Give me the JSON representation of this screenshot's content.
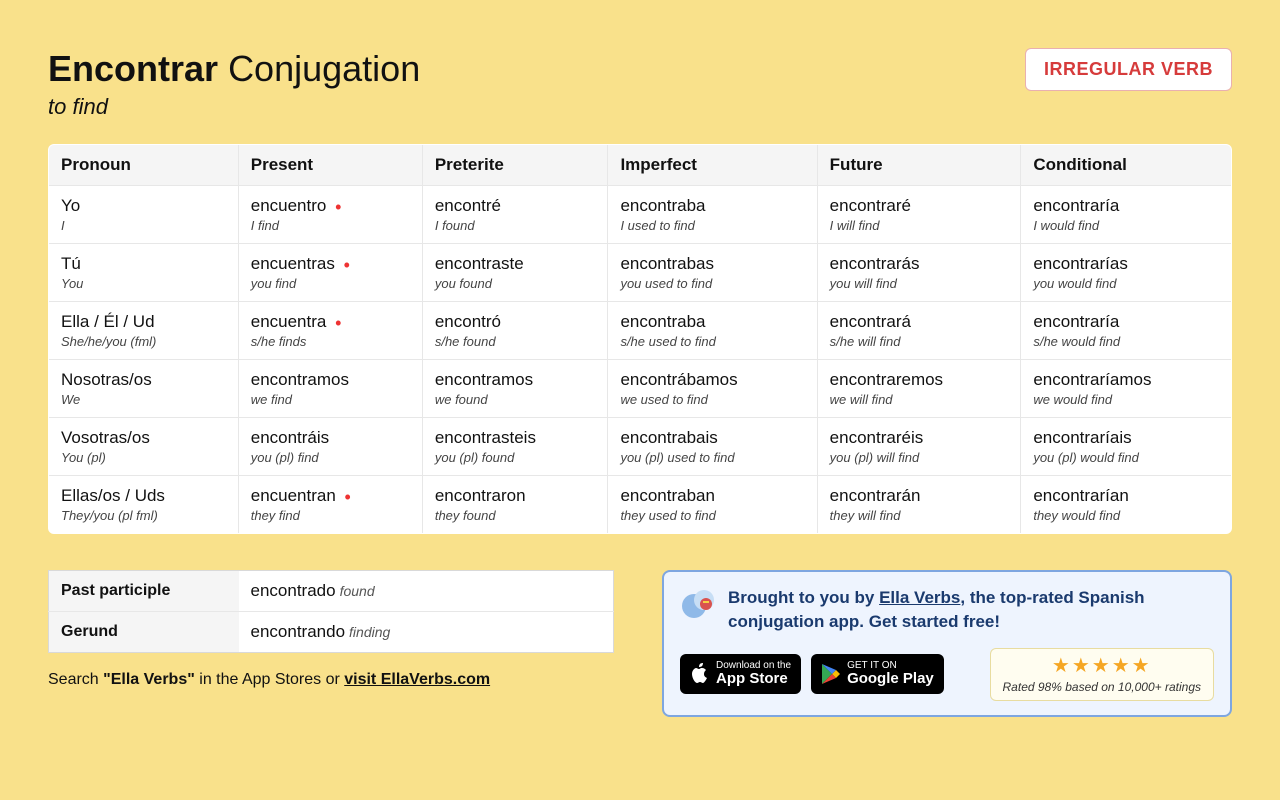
{
  "header": {
    "verb": "Encontrar",
    "title_suffix": "Conjugation",
    "meaning": "to find",
    "badge": "IRREGULAR VERB"
  },
  "columns": [
    "Pronoun",
    "Present",
    "Preterite",
    "Imperfect",
    "Future",
    "Conditional"
  ],
  "rows": [
    {
      "pronoun": "Yo",
      "pronoun_en": "I",
      "present": "encuentro",
      "present_en": "I find",
      "present_irr": true,
      "preterite": "encontré",
      "preterite_en": "I found",
      "imperfect": "encontraba",
      "imperfect_en": "I used to find",
      "future": "encontraré",
      "future_en": "I will find",
      "conditional": "encontraría",
      "conditional_en": "I would find"
    },
    {
      "pronoun": "Tú",
      "pronoun_en": "You",
      "present": "encuentras",
      "present_en": "you find",
      "present_irr": true,
      "preterite": "encontraste",
      "preterite_en": "you found",
      "imperfect": "encontrabas",
      "imperfect_en": "you used to find",
      "future": "encontrarás",
      "future_en": "you will find",
      "conditional": "encontrarías",
      "conditional_en": "you would find"
    },
    {
      "pronoun": "Ella / Él / Ud",
      "pronoun_en": "She/he/you (fml)",
      "present": "encuentra",
      "present_en": "s/he finds",
      "present_irr": true,
      "preterite": "encontró",
      "preterite_en": "s/he found",
      "imperfect": "encontraba",
      "imperfect_en": "s/he used to find",
      "future": "encontrará",
      "future_en": "s/he will find",
      "conditional": "encontraría",
      "conditional_en": "s/he would find"
    },
    {
      "pronoun": "Nosotras/os",
      "pronoun_en": "We",
      "present": "encontramos",
      "present_en": "we find",
      "present_irr": false,
      "preterite": "encontramos",
      "preterite_en": "we found",
      "imperfect": "encontrábamos",
      "imperfect_en": "we used to find",
      "future": "encontraremos",
      "future_en": "we will find",
      "conditional": "encontraríamos",
      "conditional_en": "we would find"
    },
    {
      "pronoun": "Vosotras/os",
      "pronoun_en": "You (pl)",
      "present": "encontráis",
      "present_en": "you (pl) find",
      "present_irr": false,
      "preterite": "encontrasteis",
      "preterite_en": "you (pl) found",
      "imperfect": "encontrabais",
      "imperfect_en": "you (pl) used to find",
      "future": "encontraréis",
      "future_en": "you (pl) will find",
      "conditional": "encontraríais",
      "conditional_en": "you (pl) would find"
    },
    {
      "pronoun": "Ellas/os / Uds",
      "pronoun_en": "They/you (pl fml)",
      "present": "encuentran",
      "present_en": "they find",
      "present_irr": true,
      "preterite": "encontraron",
      "preterite_en": "they found",
      "imperfect": "encontraban",
      "imperfect_en": "they used to find",
      "future": "encontrarán",
      "future_en": "they will find",
      "conditional": "encontrarían",
      "conditional_en": "they would find"
    }
  ],
  "participles": [
    {
      "label": "Past participle",
      "value": "encontrado",
      "en": "found"
    },
    {
      "label": "Gerund",
      "value": "encontrando",
      "en": "finding"
    }
  ],
  "search_note": {
    "prefix": "Search ",
    "bold": "\"Ella Verbs\"",
    "mid": " in the App Stores or ",
    "link": "visit EllaVerbs.com"
  },
  "promo": {
    "text_prefix": "Brought to you by ",
    "link": "Ella Verbs",
    "text_suffix": ", the top-rated Spanish conjugation app. Get started free!",
    "appstore_small": "Download on the",
    "appstore_big": "App Store",
    "play_small": "GET IT ON",
    "play_big": "Google Play",
    "rating_text": "Rated 98% based on 10,000+ ratings"
  },
  "colors": {
    "bg": "#f9e18b",
    "accent_red": "#d63b3b",
    "promo_bg": "#eef4fe",
    "promo_border": "#7ea6e0",
    "star": "#f5a623"
  }
}
